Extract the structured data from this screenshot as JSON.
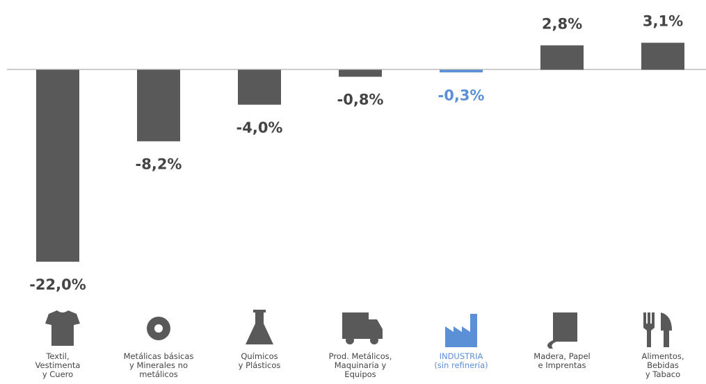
{
  "chart_data": {
    "type": "bar",
    "categories": [
      "Textil,\nVestimenta\ny Cuero",
      "Metálicas básicas\ny Minerales no\nmetálicos",
      "Químicos\ny Plásticos",
      "Prod. Metálicos,\nMaquinaria y\nEquipos",
      "INDUSTRIA\n(sin refinería)",
      "Madera, Papel\ne Imprentas",
      "Alimentos,\nBebidas\ny Tabaco"
    ],
    "values": [
      -22.0,
      -8.2,
      -4.0,
      -0.8,
      -0.3,
      2.8,
      3.1
    ],
    "value_labels": [
      "-22,0%",
      "-8,2%",
      "-4,0%",
      "-0,8%",
      "-0,3%",
      "2,8%",
      "3,1%"
    ],
    "colors": [
      "#595959",
      "#595959",
      "#595959",
      "#595959",
      "#5b8fd6",
      "#595959",
      "#595959"
    ],
    "ylim": [
      -24,
      8
    ]
  }
}
